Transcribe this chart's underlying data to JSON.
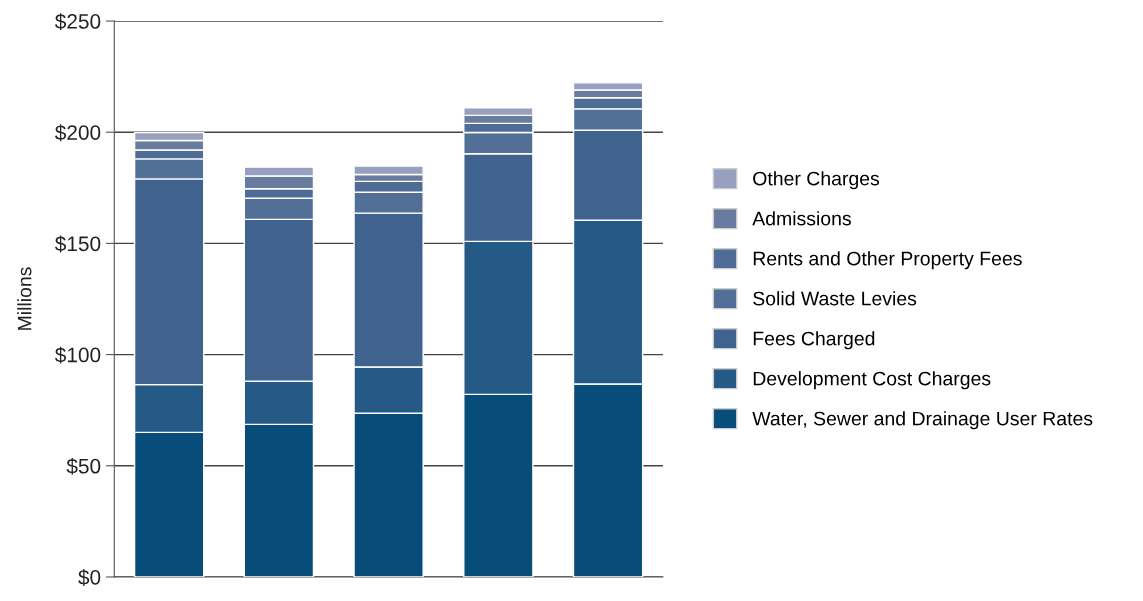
{
  "chart_data": {
    "type": "bar",
    "stacked": true,
    "ylabel": "Millions",
    "categories": [
      null,
      null,
      null,
      null,
      null
    ],
    "series": [
      {
        "name": "Water, Sewer and Drainage User Rates",
        "color": "#084c7a",
        "values": [
          65.0,
          68.6,
          73.6,
          82.1,
          86.8
        ]
      },
      {
        "name": "Development Cost Charges",
        "color": "#255a87",
        "values": [
          21.5,
          19.4,
          20.8,
          68.8,
          73.6
        ]
      },
      {
        "name": "Fees Charged",
        "color": "#40628e",
        "values": [
          92.5,
          72.8,
          69.2,
          39.4,
          40.5
        ]
      },
      {
        "name": "Solid Waste Levies",
        "color": "#526f98",
        "values": [
          9.0,
          9.5,
          9.4,
          9.6,
          9.6
        ]
      },
      {
        "name": "Rents and Other Property Fees",
        "color": "#4f6c96",
        "values": [
          4.0,
          4.3,
          4.9,
          4.1,
          5.0
        ]
      },
      {
        "name": "Admissions",
        "color": "#6a7ba0",
        "values": [
          4.3,
          5.7,
          3.1,
          3.6,
          3.5
        ]
      },
      {
        "name": "Other Charges",
        "color": "#97a1bf",
        "values": [
          3.5,
          4.0,
          3.8,
          3.4,
          3.2
        ]
      }
    ],
    "ylim": [
      0,
      250
    ],
    "yticks": [
      {
        "value": 0,
        "label": "$0"
      },
      {
        "value": 50,
        "label": "$50"
      },
      {
        "value": 100,
        "label": "$100"
      },
      {
        "value": 150,
        "label": "$150"
      },
      {
        "value": 200,
        "label": "$200"
      },
      {
        "value": 250,
        "label": "$250"
      }
    ],
    "grid": "y",
    "legend": "right"
  }
}
